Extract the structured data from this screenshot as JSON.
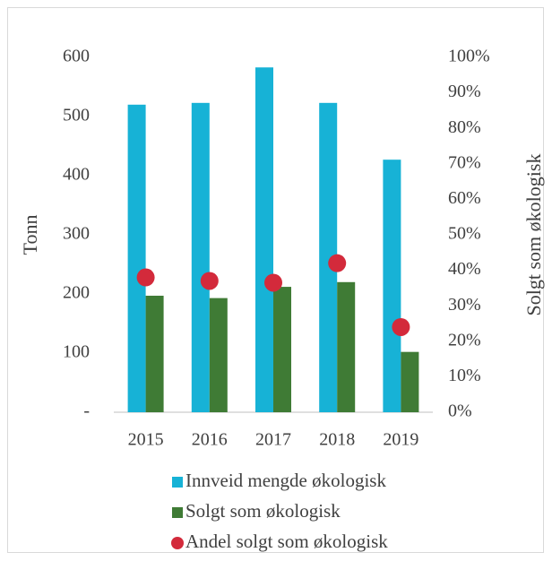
{
  "chart_data": {
    "type": "bar",
    "ylabel": "Tonn",
    "y2label": "Solgt som økologisk",
    "categories": [
      "2015",
      "2016",
      "2017",
      "2018",
      "2019"
    ],
    "series": [
      {
        "name": "Innveid mengde økologisk",
        "color": "#17b2d6",
        "values": [
          520,
          523,
          583,
          523,
          427
        ]
      },
      {
        "name": "Solgt som økologisk",
        "color": "#3f7b35",
        "values": [
          197,
          193,
          212,
          220,
          102
        ]
      },
      {
        "name": "Andel solgt som økologisk",
        "color": "#d32a3b",
        "values": [
          38,
          37,
          36.5,
          42,
          24
        ],
        "axis": "y2",
        "type": "scatter"
      }
    ],
    "ylim": [
      0,
      600
    ],
    "yticks": [
      {
        "value": 0,
        "label": "-"
      },
      100,
      200,
      300,
      400,
      500,
      600
    ],
    "y2lim": [
      0,
      100
    ],
    "y2ticks": [
      {
        "value": 0,
        "label": "0%"
      },
      {
        "value": 10,
        "label": "10%"
      },
      {
        "value": 20,
        "label": "20%"
      },
      {
        "value": 30,
        "label": "30%"
      },
      {
        "value": 40,
        "label": "40%"
      },
      {
        "value": 50,
        "label": "50%"
      },
      {
        "value": 60,
        "label": "60%"
      },
      {
        "value": 70,
        "label": "70%"
      },
      {
        "value": 80,
        "label": "80%"
      },
      {
        "value": 90,
        "label": "90%"
      },
      {
        "value": 100,
        "label": "100%"
      }
    ],
    "legend": "bottom"
  }
}
